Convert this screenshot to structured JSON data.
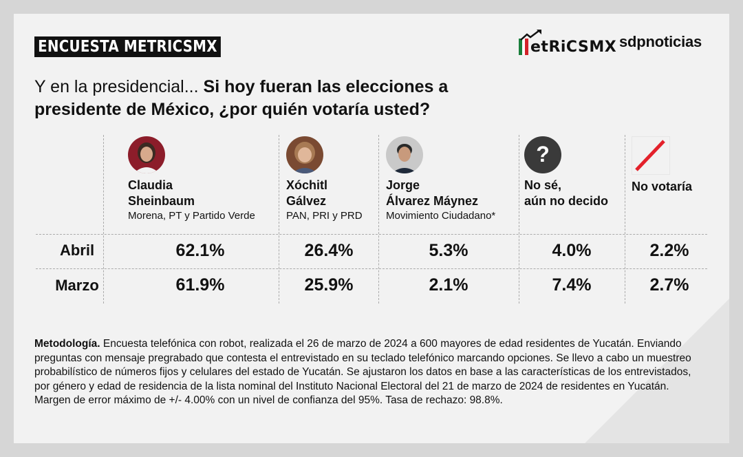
{
  "header": {
    "badge": "ENCUESTA METRICSMX",
    "logo_metrics": "etRiCSMX",
    "logo_sdp": "sdpnoticias"
  },
  "question": {
    "lead": "Y en la presidencial...",
    "bold": "Si hoy fueran las elecciones a presidente de México, ¿por quién votaría usted?"
  },
  "candidates": [
    {
      "name_line1": "Claudia",
      "name_line2": "Sheinbaum",
      "party": "Morena, PT y Partido Verde",
      "icon": "candidate-photo"
    },
    {
      "name_line1": "Xóchitl",
      "name_line2": "Gálvez",
      "party": "PAN, PRI y PRD",
      "icon": "candidate-photo"
    },
    {
      "name_line1": "Jorge",
      "name_line2": "Álvarez Máynez",
      "party": "Movimiento Ciudadano*",
      "icon": "candidate-photo"
    },
    {
      "name_line1": "No sé,",
      "name_line2": "aún no decido",
      "party": "",
      "icon": "question-mark-icon"
    },
    {
      "name_line1": "No votaría",
      "name_line2": "",
      "party": "",
      "icon": "slash-icon"
    }
  ],
  "rows": [
    {
      "label": "Abril",
      "values": [
        "62.1%",
        "26.4%",
        "5.3%",
        "4.0%",
        "2.2%"
      ]
    },
    {
      "label": "Marzo",
      "values": [
        "61.9%",
        "25.9%",
        "2.1%",
        "7.4%",
        "2.7%"
      ]
    }
  ],
  "chart_data": {
    "type": "table",
    "title": "Y en la presidencial... Si hoy fueran las elecciones a presidente de México, ¿por quién votaría usted?",
    "columns": [
      "Claudia Sheinbaum",
      "Xóchitl Gálvez",
      "Jorge Álvarez Máynez",
      "No sé, aún no decido",
      "No votaría"
    ],
    "series": [
      {
        "name": "Abril",
        "values": [
          62.1,
          26.4,
          5.3,
          4.0,
          2.2
        ]
      },
      {
        "name": "Marzo",
        "values": [
          61.9,
          25.9,
          2.1,
          7.4,
          2.7
        ]
      }
    ]
  },
  "methodology": {
    "label": "Metodología.",
    "text": "Encuesta telefónica con robot, realizada el 26 de marzo de 2024 a 600 mayores de edad residentes de Yucatán. Enviando preguntas con mensaje pregrabado que contesta el entrevistado en su teclado telefónico marcando opciones. Se llevo a cabo un muestreo probabilístico de números fijos y celulares del estado de Yucatán. Se ajustaron los datos en base a las características de los entrevistados, por género y edad de residencia de la lista nominal del Instituto Nacional Electoral del 21 de marzo de 2024 de residentes en Yucatán. Margen de error máximo de +/- 4.00% con un nivel de confianza del 95%. Tasa de rechazo: 98.8%."
  },
  "colors": {
    "sheinbaum_bg": "#8c1d2a",
    "galvez_bg": "#7a4a32",
    "maynez_bg": "#c9c9c9",
    "unknown_bg": "#3a3a3a",
    "slash": "#e3212b",
    "flag_green": "#1a7f3c",
    "flag_red": "#d2232a"
  }
}
